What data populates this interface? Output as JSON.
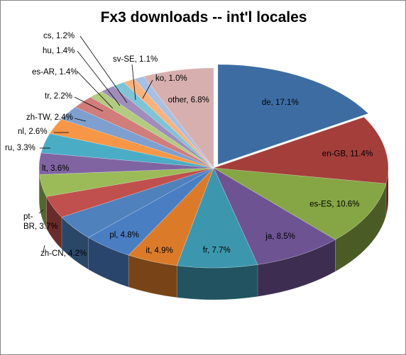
{
  "chart_data": {
    "type": "pie",
    "title": "Fx3 downloads -- int'l locales",
    "style": "3d-exploded-first-slice",
    "legend": "none",
    "slices": [
      {
        "label": "de",
        "value": 17.1,
        "text": "de, 17.1%",
        "color": "#3D6CA3"
      },
      {
        "label": "en-GB",
        "value": 11.4,
        "text": "en-GB, 11.4%",
        "color": "#A43E3B"
      },
      {
        "label": "es-ES",
        "value": 10.6,
        "text": "es-ES, 10.6%",
        "color": "#86A544"
      },
      {
        "label": "ja",
        "value": 8.5,
        "text": "ja, 8.5%",
        "color": "#6E5393"
      },
      {
        "label": "fr",
        "value": 7.7,
        "text": "fr, 7.7%",
        "color": "#3C97AE"
      },
      {
        "label": "it",
        "value": 4.9,
        "text": "it, 4.9%",
        "color": "#DB7B2A"
      },
      {
        "label": "pl",
        "value": 4.8,
        "text": "pl, 4.8%",
        "color": "#4A7EC3"
      },
      {
        "label": "zh-CN",
        "value": 4.2,
        "text": "zh-CN, 4.2%",
        "color": "#4F81BD"
      },
      {
        "label": "pt-BR",
        "value": 3.7,
        "text": "pt-\nBR, 3.7%",
        "color": "#C0504D"
      },
      {
        "label": "unlabeled",
        "value": 3.7,
        "text": "",
        "color": "#9BBB59"
      },
      {
        "label": "lt",
        "value": 3.6,
        "text": "lt, 3.6%",
        "color": "#8064A2"
      },
      {
        "label": "ru",
        "value": 3.3,
        "text": "ru, 3.3%",
        "color": "#4BACC6"
      },
      {
        "label": "nl",
        "value": 2.6,
        "text": "nl, 2.6%",
        "color": "#F79646"
      },
      {
        "label": "zh-TW",
        "value": 2.4,
        "text": "zh-TW, 2.4%",
        "color": "#7F9FCF"
      },
      {
        "label": "tr",
        "value": 2.2,
        "text": "tr, 2.2%",
        "color": "#D07D7B"
      },
      {
        "label": "es-AR",
        "value": 1.4,
        "text": "es-AR, 1.4%",
        "color": "#B2CB80"
      },
      {
        "label": "hu",
        "value": 1.4,
        "text": "hu, 1.4%",
        "color": "#A08DBB"
      },
      {
        "label": "cs",
        "value": 1.2,
        "text": "cs, 1.2%",
        "color": "#7FC3D7"
      },
      {
        "label": "sv-SE",
        "value": 1.1,
        "text": "sv-SE, 1.1%",
        "color": "#F9B27C"
      },
      {
        "label": "ko",
        "value": 1.0,
        "text": "ko, 1.0%",
        "color": "#A9C0E3"
      },
      {
        "label": "other",
        "value": 6.8,
        "text": "other, 6.8%",
        "color": "#D8AFAF"
      }
    ]
  }
}
